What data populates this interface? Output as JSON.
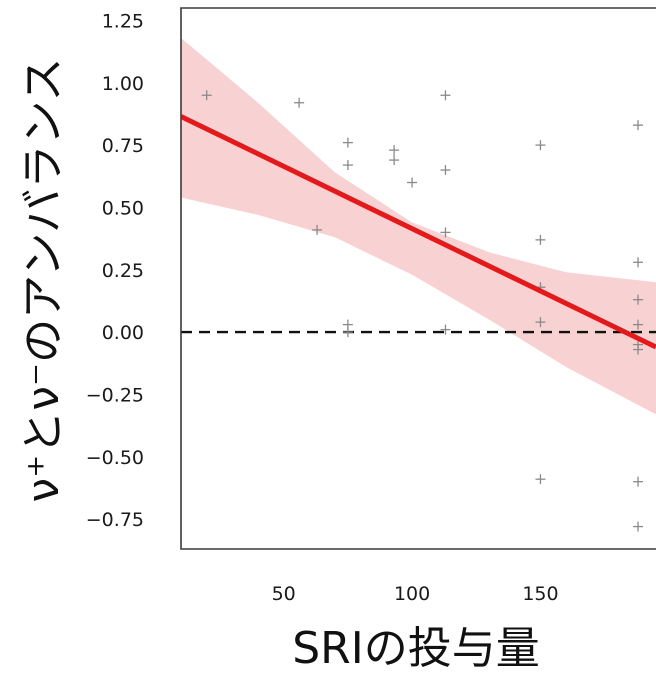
{
  "chart_data": {
    "type": "scatter",
    "title": "",
    "xlabel": "SRIの投与量",
    "ylabel": "ν⁺とν⁻のアンバランス",
    "xlim": [
      10,
      195
    ],
    "ylim": [
      -0.87,
      1.3
    ],
    "x_ticks": [
      50,
      100,
      150
    ],
    "x_tick_labels": [
      "50",
      "100",
      "150"
    ],
    "y_ticks": [
      1.25,
      1.0,
      0.75,
      0.5,
      0.25,
      0.0,
      -0.25,
      -0.5,
      -0.75
    ],
    "y_tick_labels": [
      "1.25",
      "1.00",
      "0.75",
      "0.50",
      "0.25",
      "0.00",
      "−0.25",
      "−0.50",
      "−0.75"
    ],
    "grid": false,
    "reference_line": {
      "y": 0,
      "style": "dashed",
      "color": "#111111"
    },
    "series": [
      {
        "type": "scatter",
        "marker": "+",
        "color": "#8a8a8a",
        "points": [
          [
            20,
            0.95
          ],
          [
            56,
            0.92
          ],
          [
            63,
            0.41
          ],
          [
            75,
            0.76
          ],
          [
            75,
            0.67
          ],
          [
            75,
            0.03
          ],
          [
            75,
            0.0
          ],
          [
            93,
            0.73
          ],
          [
            93,
            0.69
          ],
          [
            100,
            0.6
          ],
          [
            113,
            0.95
          ],
          [
            113,
            0.65
          ],
          [
            113,
            0.4
          ],
          [
            113,
            0.01
          ],
          [
            150,
            0.75
          ],
          [
            150,
            0.37
          ],
          [
            150,
            0.18
          ],
          [
            150,
            0.04
          ],
          [
            150,
            -0.59
          ],
          [
            188,
            0.83
          ],
          [
            188,
            0.28
          ],
          [
            188,
            0.13
          ],
          [
            188,
            0.03
          ],
          [
            188,
            -0.05
          ],
          [
            188,
            -0.07
          ],
          [
            188,
            -0.6
          ],
          [
            188,
            -0.78
          ]
        ]
      },
      {
        "type": "line",
        "color": "#e31a1c",
        "x": [
          10,
          195
        ],
        "y": [
          0.865,
          -0.06
        ]
      },
      {
        "type": "area",
        "color": "#f4b6b8",
        "x": [
          10,
          40,
          70,
          100,
          130,
          160,
          195
        ],
        "lower": [
          0.54,
          0.47,
          0.38,
          0.23,
          0.05,
          -0.14,
          -0.33
        ],
        "upper": [
          1.18,
          0.92,
          0.64,
          0.44,
          0.32,
          0.24,
          0.2
        ]
      }
    ]
  }
}
